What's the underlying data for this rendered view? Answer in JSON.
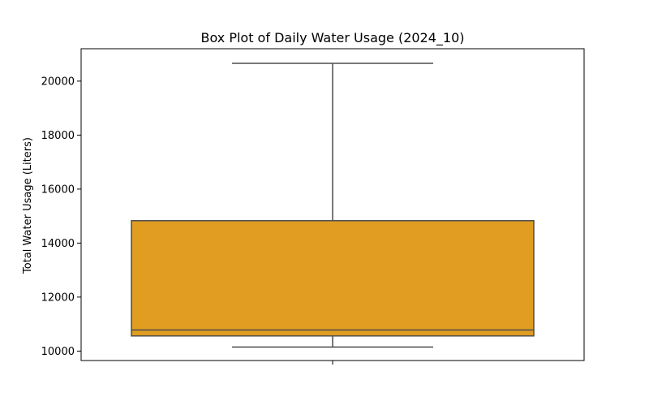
{
  "chart_data": {
    "type": "box",
    "title": "Box Plot of Daily Water Usage (2024_10)",
    "xlabel": "",
    "ylabel": "Total Water Usage (Liters)",
    "ylim": [
      9650,
      21200
    ],
    "yticks": [
      10000,
      12000,
      14000,
      16000,
      18000,
      20000
    ],
    "ytick_labels": [
      "10000",
      "12000",
      "14000",
      "16000",
      "18000",
      "20000"
    ],
    "grid": false,
    "legend": "none",
    "box": {
      "whisker_low": 10150,
      "q1": 10560,
      "median": 10780,
      "q3": 14830,
      "whisker_high": 20660
    },
    "colors": {
      "box_fill": "#e09d21",
      "line": "#4d4d4d"
    }
  }
}
